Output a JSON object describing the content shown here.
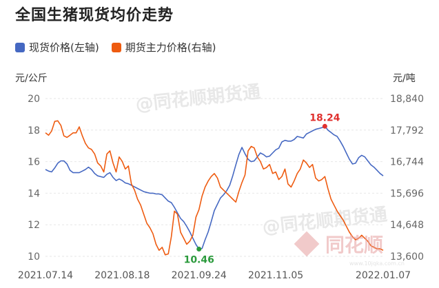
{
  "title": "全国生猪现货均价走势",
  "chart_data": {
    "type": "line",
    "title": "全国生猪现货均价走势",
    "left_unit": "元/公斤",
    "right_unit": "元/吨",
    "y_left_ticks": [
      10,
      12,
      14,
      16,
      18,
      20
    ],
    "y_right_ticks": [
      13600,
      14648,
      15696,
      16744,
      17792,
      18840
    ],
    "ylim_left": [
      10,
      20
    ],
    "ylim_right": [
      13600,
      18840
    ],
    "x_ticks": [
      "2021.07.14",
      "2021.08.18",
      "2021.09.24",
      "2021.11.05",
      "2022.01.07"
    ],
    "x_tick_index": [
      0,
      25,
      50,
      75,
      110
    ],
    "n_points": 111,
    "legend_position": "top-left",
    "grid": "horizontal",
    "series": [
      {
        "name": "现货价格(左轴)",
        "axis": "left",
        "color": "#4568c2",
        "values": [
          15.5,
          15.4,
          15.35,
          15.6,
          15.9,
          16.05,
          16.05,
          15.85,
          15.45,
          15.3,
          15.3,
          15.3,
          15.4,
          15.5,
          15.65,
          15.5,
          15.25,
          15.1,
          15.05,
          15.0,
          15.2,
          15.3,
          15.0,
          14.8,
          14.9,
          14.8,
          14.65,
          14.6,
          14.5,
          14.4,
          14.3,
          14.2,
          14.1,
          14.05,
          14.0,
          14.0,
          13.95,
          13.95,
          13.9,
          13.7,
          13.5,
          13.4,
          13.1,
          12.75,
          12.4,
          12.2,
          11.9,
          11.55,
          11.15,
          10.75,
          10.46,
          10.5,
          11.05,
          11.55,
          12.2,
          12.9,
          13.3,
          13.7,
          13.9,
          14.15,
          14.5,
          15.1,
          15.8,
          16.45,
          16.9,
          16.5,
          16.15,
          16.0,
          16.05,
          16.3,
          16.55,
          16.45,
          16.3,
          16.35,
          16.55,
          16.75,
          16.85,
          17.25,
          17.35,
          17.3,
          17.3,
          17.4,
          17.6,
          17.55,
          17.5,
          17.75,
          17.85,
          17.95,
          18.05,
          18.1,
          18.15,
          18.24,
          18.0,
          17.85,
          17.7,
          17.6,
          17.3,
          16.95,
          16.55,
          16.15,
          15.85,
          15.9,
          16.25,
          16.4,
          16.3,
          16.05,
          15.8,
          15.65,
          15.45,
          15.25,
          15.1
        ]
      },
      {
        "name": "期货主力价格(右轴)",
        "axis": "right",
        "color": "#ee5b10",
        "values": [
          17700,
          17620,
          17760,
          18080,
          18100,
          17950,
          17600,
          17550,
          17620,
          17700,
          17700,
          17900,
          17600,
          17350,
          17200,
          17150,
          17000,
          16700,
          16600,
          16400,
          17000,
          17100,
          16700,
          16400,
          16900,
          16750,
          16500,
          16600,
          16000,
          15800,
          15500,
          15300,
          15000,
          14700,
          14550,
          14350,
          14000,
          13800,
          13900,
          13650,
          13680,
          14250,
          15100,
          15000,
          14400,
          14200,
          14000,
          14100,
          14300,
          14900,
          15150,
          15600,
          15900,
          16100,
          16250,
          16350,
          16200,
          15900,
          15800,
          15700,
          15600,
          15500,
          15400,
          15750,
          16050,
          16300,
          17100,
          17250,
          17200,
          16900,
          16750,
          16500,
          16550,
          16650,
          16350,
          16400,
          16150,
          16250,
          16500,
          16000,
          15900,
          16100,
          16350,
          16500,
          16800,
          16700,
          16550,
          16650,
          16200,
          16100,
          16150,
          16250,
          15850,
          15500,
          15300,
          15100,
          14950,
          14800,
          14600,
          14400,
          14250,
          14150,
          14200,
          14300,
          14200,
          14100,
          13950,
          13900,
          13850,
          13850,
          13800
        ]
      }
    ],
    "annotations": [
      {
        "label": "18.24",
        "series": 0,
        "index": 91,
        "color": "#e0302e"
      },
      {
        "label": "10.46",
        "series": 0,
        "index": 50,
        "color": "#2b9a3c"
      }
    ]
  },
  "watermark": "@同花顺期货通",
  "footer_brand": "同花顺",
  "footer_url": "www.10jqka.com.cn"
}
